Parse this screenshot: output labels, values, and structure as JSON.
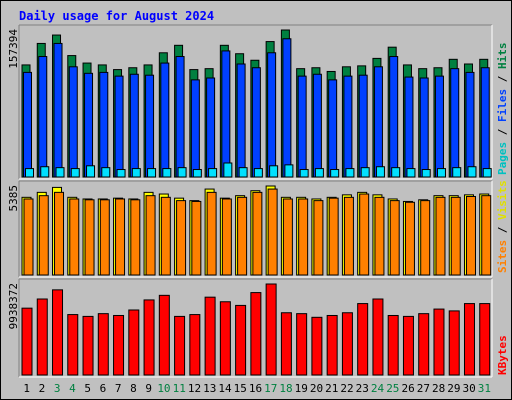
{
  "chart_data": [
    {
      "type": "bar",
      "title": "Daily usage for August 2024",
      "categories": [
        "1",
        "2",
        "3",
        "4",
        "5",
        "6",
        "7",
        "8",
        "9",
        "10",
        "11",
        "12",
        "13",
        "14",
        "15",
        "16",
        "17",
        "18",
        "19",
        "20",
        "21",
        "22",
        "23",
        "24",
        "25",
        "26",
        "27",
        "28",
        "29",
        "30",
        "31"
      ],
      "weekend_days": [
        "3",
        "4",
        "10",
        "11",
        "17",
        "18",
        "24",
        "25",
        "31"
      ],
      "y_max_label": "157394",
      "ylim": [
        0,
        157394
      ],
      "series": [
        {
          "name": "Hits",
          "color": "#008040",
          "values": [
            120000,
            143000,
            152000,
            130000,
            122000,
            120000,
            115000,
            117000,
            120000,
            133000,
            141000,
            115000,
            116000,
            141000,
            132000,
            125000,
            145000,
            157394,
            116000,
            117000,
            113000,
            118000,
            119000,
            127000,
            139000,
            120000,
            116000,
            117000,
            126000,
            121000,
            126000
          ]
        },
        {
          "name": "Files",
          "color": "#0040ff",
          "values": [
            112000,
            129000,
            143000,
            118000,
            111000,
            112000,
            108000,
            110000,
            109000,
            122000,
            129000,
            104000,
            106000,
            135000,
            121000,
            117000,
            133000,
            148000,
            108000,
            110000,
            104000,
            108000,
            109000,
            118000,
            129000,
            107000,
            106000,
            108000,
            116000,
            112000,
            117000
          ]
        },
        {
          "name": "Pages",
          "color": "#00e0ff",
          "values": [
            9000,
            11000,
            10000,
            9000,
            12000,
            10000,
            8000,
            9000,
            9000,
            9000,
            10000,
            8000,
            9000,
            15000,
            10000,
            9000,
            12000,
            13000,
            8000,
            9000,
            8000,
            9000,
            10000,
            11000,
            10000,
            9000,
            8000,
            9000,
            10000,
            11000,
            9000
          ]
        }
      ]
    },
    {
      "type": "bar",
      "categories": [
        "1",
        "2",
        "3",
        "4",
        "5",
        "6",
        "7",
        "8",
        "9",
        "10",
        "11",
        "12",
        "13",
        "14",
        "15",
        "16",
        "17",
        "18",
        "19",
        "20",
        "21",
        "22",
        "23",
        "24",
        "25",
        "26",
        "27",
        "28",
        "29",
        "30",
        "31"
      ],
      "y_max_label": "5385",
      "ylim": [
        0,
        5385
      ],
      "series": [
        {
          "name": "Visits",
          "color": "#ffff00",
          "values": [
            4700,
            5000,
            5300,
            4700,
            4600,
            4600,
            4650,
            4600,
            5000,
            4900,
            4650,
            4500,
            5200,
            4650,
            4800,
            5100,
            5385,
            4700,
            4700,
            4600,
            4700,
            4850,
            5000,
            4850,
            4600,
            4450,
            4550,
            4800,
            4800,
            4850,
            4900
          ]
        },
        {
          "name": "Sites",
          "color": "#ff8000",
          "values": [
            4600,
            4800,
            5000,
            4600,
            4550,
            4550,
            4600,
            4550,
            4800,
            4700,
            4500,
            4450,
            5000,
            4600,
            4700,
            5000,
            5200,
            4600,
            4600,
            4500,
            4650,
            4700,
            4900,
            4700,
            4500,
            4400,
            4500,
            4700,
            4700,
            4750,
            4800
          ]
        }
      ]
    },
    {
      "type": "bar",
      "categories": [
        "1",
        "2",
        "3",
        "4",
        "5",
        "6",
        "7",
        "8",
        "9",
        "10",
        "11",
        "12",
        "13",
        "14",
        "15",
        "16",
        "17",
        "18",
        "19",
        "20",
        "21",
        "22",
        "23",
        "24",
        "25",
        "26",
        "27",
        "28",
        "29",
        "30",
        "31"
      ],
      "y_max_label": "9938372",
      "ylim": [
        0,
        9938372
      ],
      "series": [
        {
          "name": "KBytes",
          "color": "#ff0000",
          "values": [
            7300000,
            8300000,
            9300000,
            6600000,
            6400000,
            6700000,
            6500000,
            7100000,
            8200000,
            8700000,
            6400000,
            6600000,
            8500000,
            8000000,
            7600000,
            9000000,
            9938372,
            6800000,
            6700000,
            6300000,
            6500000,
            6800000,
            7800000,
            8300000,
            6500000,
            6400000,
            6700000,
            7200000,
            7000000,
            7800000,
            7800000
          ]
        }
      ]
    }
  ],
  "legend": {
    "top": [
      {
        "text": "Pages",
        "color": "#00c0c0"
      },
      {
        "text": " / ",
        "color": "#000000"
      },
      {
        "text": "Files",
        "color": "#0040ff"
      },
      {
        "text": " / ",
        "color": "#000000"
      },
      {
        "text": "Hits",
        "color": "#008040"
      }
    ],
    "middle": [
      {
        "text": "Sites",
        "color": "#ff8000"
      },
      {
        "text": " / ",
        "color": "#000000"
      },
      {
        "text": "Visits",
        "color": "#e0e000"
      }
    ],
    "bottom": [
      {
        "text": "KBytes",
        "color": "#ff0000"
      }
    ]
  },
  "colors": {
    "background": "#c0c0c0",
    "title": "#0000ff",
    "weekday_label": "#000000",
    "weekend_label": "#008040"
  }
}
